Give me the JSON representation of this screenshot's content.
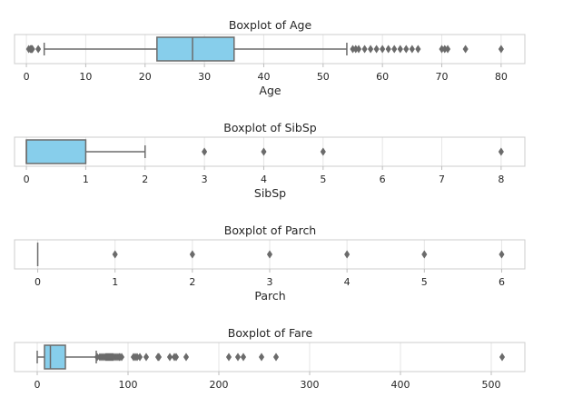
{
  "chart_data": [
    {
      "type": "boxplot",
      "title": "Boxplot of Age",
      "xlabel": "Age",
      "xlim": [
        -2,
        84
      ],
      "ticks": [
        0,
        10,
        20,
        30,
        40,
        50,
        60,
        70,
        80
      ],
      "box": {
        "whisker_low": 3,
        "q1": 22,
        "median": 28,
        "q3": 35,
        "whisker_high": 54
      },
      "outliers": [
        0.4,
        0.7,
        0.8,
        0.9,
        1,
        2,
        55,
        55.5,
        56,
        57,
        58,
        59,
        60,
        61,
        62,
        63,
        64,
        65,
        66,
        70,
        70.5,
        71,
        74,
        80
      ],
      "box_color": "#87ceeb"
    },
    {
      "type": "boxplot",
      "title": "Boxplot of SibSp",
      "xlabel": "SibSp",
      "xlim": [
        -0.2,
        8.4
      ],
      "ticks": [
        0,
        1,
        2,
        3,
        4,
        5,
        6,
        7,
        8
      ],
      "box": {
        "whisker_low": 0,
        "q1": 0,
        "median": 0,
        "q3": 1,
        "whisker_high": 2
      },
      "outliers": [
        3,
        4,
        5,
        8
      ],
      "box_color": "#87ceeb"
    },
    {
      "type": "boxplot",
      "title": "Boxplot of Parch",
      "xlabel": "Parch",
      "xlim": [
        -0.3,
        6.3
      ],
      "ticks": [
        0,
        1,
        2,
        3,
        4,
        5,
        6
      ],
      "box": {
        "whisker_low": 0,
        "q1": 0,
        "median": 0,
        "q3": 0,
        "whisker_high": 0
      },
      "outliers": [
        1,
        2,
        3,
        4,
        5,
        6
      ],
      "box_color": "#87ceeb"
    },
    {
      "type": "boxplot",
      "title": "Boxplot of Fare",
      "xlabel": "",
      "xlim": [
        -25,
        537
      ],
      "ticks": [
        0,
        100,
        200,
        300,
        400,
        500
      ],
      "box": {
        "whisker_low": 0,
        "q1": 8,
        "median": 14.5,
        "q3": 31,
        "whisker_high": 65
      },
      "outliers": [
        66,
        69,
        71,
        73,
        75,
        76,
        77,
        78,
        79,
        80,
        81,
        82,
        83,
        84,
        86,
        88,
        90,
        91,
        93,
        106,
        108,
        110,
        113,
        120,
        133,
        134,
        146,
        151,
        153,
        164,
        211,
        221,
        227,
        247,
        263,
        512
      ],
      "box_color": "#87ceeb"
    }
  ]
}
